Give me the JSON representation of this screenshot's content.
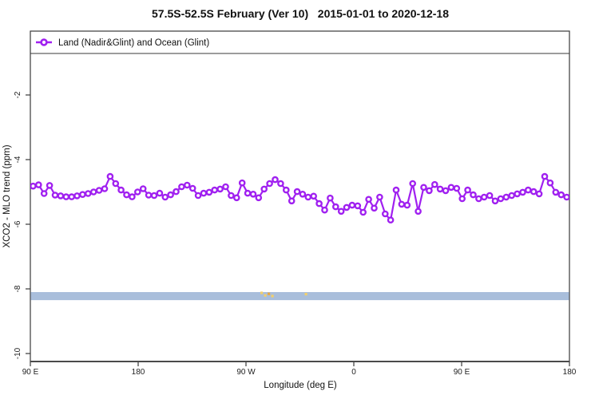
{
  "header": {
    "title": "57.5S-52.5S February (Ver 10)   2015-01-01 to 2020-12-18"
  },
  "legend": {
    "label": "Land (Nadir&Glint) and Ocean (Glint)",
    "marker_color": "#A020F0"
  },
  "axes": {
    "x": {
      "label": "Longitude (deg E)",
      "ticks": [
        {
          "lon": 90,
          "label": "90 E"
        },
        {
          "lon": 180,
          "label": "180"
        },
        {
          "lon": 270,
          "label": "90 W"
        },
        {
          "lon": 360,
          "label": "0"
        },
        {
          "lon": 450,
          "label": "90 E"
        },
        {
          "lon": 540,
          "label": "180"
        }
      ]
    },
    "y": {
      "label": "XCO2 - MLO trend (ppm)",
      "ticks": [
        {
          "v": -2,
          "label": "-2"
        },
        {
          "v": -4,
          "label": "-4"
        },
        {
          "v": -6,
          "label": "-6"
        },
        {
          "v": -8,
          "label": "-8"
        },
        {
          "v": -10,
          "label": "-10"
        }
      ]
    }
  },
  "chart_data": {
    "type": "line",
    "title": "57.5S-52.5S February (Ver 10)   2015-01-01 to 2020-12-18",
    "xlabel": "Longitude (deg E)",
    "ylabel": "XCO2 - MLO trend (ppm)",
    "x_range_deg_wrapped": [
      90,
      540
    ],
    "ylim": [
      -10.3,
      0
    ],
    "grid": false,
    "legend_position": "top-left-full-width-box",
    "series": [
      {
        "name": "Land (Nadir&Glint) and Ocean (Glint)",
        "color": "#A020F0",
        "marker": "open-circle",
        "values": [
          -4.82,
          -4.78,
          -5.05,
          -4.8,
          -5.1,
          -5.12,
          -5.15,
          -5.15,
          -5.12,
          -5.08,
          -5.05,
          -5.0,
          -4.95,
          -4.9,
          -4.52,
          -4.74,
          -4.94,
          -5.09,
          -5.15,
          -5.0,
          -4.9,
          -5.1,
          -5.11,
          -5.04,
          -5.16,
          -5.09,
          -4.99,
          -4.84,
          -4.79,
          -4.89,
          -5.11,
          -5.04,
          -5.01,
          -4.94,
          -4.91,
          -4.84,
          -5.11,
          -5.18,
          -4.72,
          -5.04,
          -5.07,
          -5.18,
          -4.91,
          -4.74,
          -4.62,
          -4.74,
          -4.94,
          -5.28,
          -4.99,
          -5.07,
          -5.16,
          -5.13,
          -5.36,
          -5.56,
          -5.19,
          -5.46,
          -5.6,
          -5.48,
          -5.41,
          -5.43,
          -5.63,
          -5.23,
          -5.5,
          -5.16,
          -5.68,
          -5.87,
          -4.94,
          -5.38,
          -5.41,
          -4.74,
          -5.6,
          -4.86,
          -4.96,
          -4.77,
          -4.91,
          -4.96,
          -4.86,
          -4.89,
          -5.21,
          -4.94,
          -5.09,
          -5.21,
          -5.16,
          -5.11,
          -5.28,
          -5.21,
          -5.16,
          -5.11,
          -5.06,
          -5.01,
          -4.94,
          -4.99,
          -5.06,
          -4.52,
          -4.72,
          -5.01,
          -5.09,
          -5.16
        ]
      }
    ],
    "band": {
      "y_from": -8.35,
      "y_to": -8.1,
      "color": "#A9BEDB"
    },
    "specks": [
      {
        "lon": 283,
        "v": -8.12,
        "color": "#F2CF6B"
      },
      {
        "lon": 286,
        "v": -8.2,
        "color": "#F2CF6B"
      },
      {
        "lon": 289,
        "v": -8.15,
        "color": "#E8A845"
      },
      {
        "lon": 292,
        "v": -8.22,
        "color": "#F2CF6B"
      },
      {
        "lon": 320,
        "v": -8.16,
        "color": "#F2CF6B"
      }
    ]
  }
}
